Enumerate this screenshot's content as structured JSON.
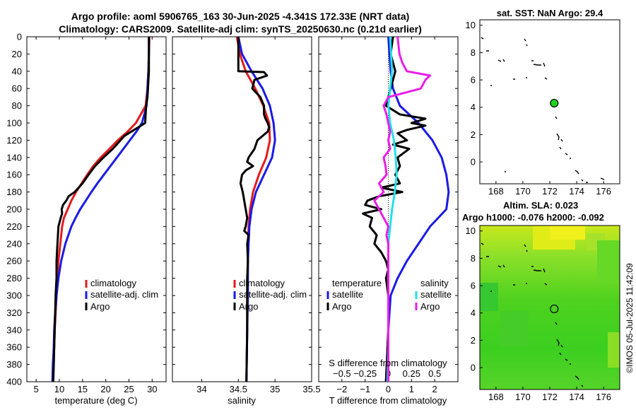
{
  "titles": {
    "line1": "Argo profile: aoml 5906765_163 30-Jun-2025 -4.341S 172.33E (NRT data)",
    "line2": "Climatology: CARS2009. Satellite-adj clim: synTS_20250630.nc (0.21d earlier)"
  },
  "colors": {
    "climatology": "#e41a1c",
    "satellite": "#1a1ae6",
    "argo": "#000000",
    "sal_satellite": "#22e0e8",
    "sal_argo": "#e81ee8"
  },
  "chart_data": [
    {
      "id": "temperature",
      "type": "line",
      "xlabel": "temperature (deg C)",
      "ylabel": "",
      "xlim": [
        3,
        33
      ],
      "ylim": [
        400,
        0
      ],
      "xticks": [
        5,
        10,
        15,
        20,
        25,
        30
      ],
      "yticks": [
        0,
        20,
        40,
        60,
        80,
        100,
        120,
        140,
        160,
        180,
        200,
        220,
        240,
        260,
        280,
        300,
        320,
        340,
        360,
        380,
        400
      ],
      "legend": [
        "climatology",
        "satellite-adj. clim",
        "Argo"
      ],
      "series": [
        {
          "name": "climatology",
          "depth": [
            0,
            20,
            40,
            60,
            80,
            100,
            110,
            120,
            130,
            140,
            150,
            160,
            170,
            180,
            190,
            200,
            210,
            220,
            240,
            260,
            280,
            300,
            320,
            340,
            360,
            380,
            400
          ],
          "values": [
            29.4,
            29.3,
            29.2,
            29.0,
            28.6,
            26.5,
            24.7,
            22.6,
            20.8,
            18.9,
            17.3,
            16.0,
            14.8,
            13.6,
            12.6,
            11.8,
            11.0,
            10.6,
            10.2,
            9.8,
            9.6,
            9.4,
            9.2,
            9.0,
            8.9,
            8.7,
            8.6
          ]
        },
        {
          "name": "satellite-adj. clim",
          "depth": [
            0,
            20,
            40,
            60,
            80,
            100,
            110,
            120,
            130,
            140,
            150,
            160,
            170,
            180,
            190,
            200,
            210,
            220,
            240,
            260,
            280,
            300,
            320,
            340,
            360,
            380,
            400
          ],
          "values": [
            29.3,
            29.3,
            29.2,
            29.0,
            28.8,
            27.8,
            26.6,
            25.2,
            23.8,
            22.4,
            21.0,
            19.6,
            18.2,
            16.9,
            15.7,
            14.5,
            13.5,
            12.6,
            11.3,
            10.4,
            9.8,
            9.4,
            9.1,
            8.9,
            8.8,
            8.6,
            8.5
          ]
        },
        {
          "name": "Argo",
          "depth": [
            0,
            20,
            40,
            60,
            70,
            80,
            90,
            100,
            105,
            110,
            115,
            120,
            130,
            140,
            150,
            160,
            170,
            180,
            185,
            190,
            195,
            200,
            205,
            210,
            220,
            230,
            240,
            260,
            280,
            300,
            320,
            340,
            360,
            380,
            400
          ],
          "values": [
            29.3,
            29.3,
            29.3,
            29.1,
            29.0,
            28.7,
            28.6,
            28.5,
            27.0,
            25.5,
            24.0,
            23.2,
            21.5,
            19.5,
            17.7,
            16.3,
            15.0,
            13.3,
            12.0,
            11.5,
            10.8,
            10.5,
            10.6,
            10.3,
            9.8,
            9.7,
            9.6,
            9.4,
            9.4,
            9.2,
            9.1,
            9.0,
            8.9,
            8.8,
            8.7
          ]
        }
      ]
    },
    {
      "id": "salinity",
      "type": "line",
      "xlabel": "salinity",
      "ylabel": "",
      "xlim": [
        33.6,
        35.5
      ],
      "ylim": [
        400,
        0
      ],
      "xticks": [
        34,
        34.5,
        35,
        35.5
      ],
      "yticks": [
        0,
        20,
        40,
        60,
        80,
        100,
        120,
        140,
        160,
        180,
        200,
        220,
        240,
        260,
        280,
        300,
        320,
        340,
        360,
        380,
        400
      ],
      "legend": [
        "climatology",
        "satellite-adj. clim",
        "Argo"
      ],
      "series": [
        {
          "name": "climatology",
          "depth": [
            0,
            20,
            40,
            60,
            80,
            100,
            120,
            140,
            160,
            180,
            200,
            220,
            240,
            260,
            300,
            340,
            400
          ],
          "values": [
            34.48,
            34.52,
            34.6,
            34.73,
            34.84,
            34.92,
            34.93,
            34.88,
            34.78,
            34.7,
            34.66,
            34.64,
            34.63,
            34.63,
            34.62,
            34.62,
            34.61
          ]
        },
        {
          "name": "satellite-adj. clim",
          "depth": [
            0,
            20,
            40,
            60,
            80,
            100,
            120,
            140,
            160,
            180,
            200,
            220,
            240,
            260,
            300,
            340,
            400
          ],
          "values": [
            34.5,
            34.55,
            34.68,
            34.83,
            34.93,
            34.98,
            35.0,
            34.96,
            34.85,
            34.74,
            34.68,
            34.65,
            34.64,
            34.63,
            34.63,
            34.62,
            34.61
          ]
        },
        {
          "name": "Argo",
          "depth": [
            0,
            20,
            40,
            41,
            45,
            50,
            60,
            70,
            80,
            90,
            95,
            100,
            105,
            110,
            120,
            130,
            140,
            145,
            150,
            155,
            160,
            170,
            180,
            190,
            200,
            210,
            220,
            225,
            230,
            240,
            260,
            280,
            300,
            340,
            400
          ],
          "values": [
            34.5,
            34.5,
            34.5,
            34.85,
            34.89,
            34.72,
            34.69,
            34.8,
            34.85,
            34.85,
            34.87,
            34.9,
            34.92,
            34.9,
            34.76,
            34.72,
            34.64,
            34.62,
            34.7,
            34.6,
            34.55,
            34.53,
            34.56,
            34.58,
            34.6,
            34.62,
            34.6,
            34.58,
            34.64,
            34.62,
            34.63,
            34.62,
            34.62,
            34.62,
            34.61
          ]
        }
      ]
    },
    {
      "id": "difference",
      "type": "line",
      "xlabel": "T difference from climatology",
      "xlabel2": "S difference from climatology",
      "xlim": [
        -3,
        3
      ],
      "xlim2": [
        -0.75,
        0.75
      ],
      "ylim": [
        400,
        0
      ],
      "xticks": [
        -2,
        -1,
        0,
        1,
        2
      ],
      "xticks2": [
        -0.5,
        -0.25,
        0,
        0.25,
        0.5
      ],
      "legend_temperature_title": "temperature",
      "legend_salinity_title": "salinity",
      "legend": [
        "satellite",
        "Argo"
      ],
      "series": [
        {
          "name": "temperature satellite",
          "depth": [
            0,
            40,
            60,
            80,
            100,
            120,
            140,
            160,
            180,
            200,
            220,
            240,
            260,
            280,
            300,
            340,
            400
          ],
          "values": [
            0.0,
            0.1,
            0.2,
            0.5,
            1.3,
            1.9,
            2.3,
            2.5,
            2.6,
            2.5,
            1.8,
            1.3,
            0.8,
            0.4,
            0.1,
            0.0,
            -0.1
          ]
        },
        {
          "name": "temperature Argo",
          "depth": [
            0,
            20,
            40,
            60,
            80,
            90,
            95,
            100,
            103,
            108,
            112,
            120,
            125,
            130,
            140,
            150,
            160,
            170,
            175,
            180,
            185,
            190,
            195,
            200,
            205,
            210,
            220,
            230,
            240,
            250,
            260,
            270,
            280,
            300,
            340,
            400
          ],
          "values": [
            0.2,
            0.1,
            0.3,
            0.1,
            -0.1,
            0.5,
            1.6,
            1.0,
            1.6,
            0.8,
            0.4,
            0.8,
            0.2,
            0.9,
            0.4,
            0.5,
            0.3,
            0.5,
            -0.3,
            0.6,
            -0.4,
            -0.9,
            -1.0,
            -0.3,
            -1.1,
            -0.7,
            -0.8,
            -0.5,
            -0.6,
            -0.3,
            -0.1,
            0.0,
            -0.1,
            0.0,
            0.0,
            -0.1
          ]
        },
        {
          "name": "salinity satellite",
          "depth": [
            0,
            20,
            40,
            60,
            80,
            100,
            120,
            140,
            160,
            180,
            200,
            240,
            280,
            320,
            360,
            400
          ],
          "values": [
            0.02,
            0.03,
            0.04,
            0.02,
            0.0,
            0.02,
            0.06,
            0.08,
            0.09,
            0.07,
            0.04,
            0.0,
            0.0,
            0.0,
            0.0,
            -0.01
          ]
        },
        {
          "name": "salinity Argo",
          "depth": [
            0,
            20,
            30,
            40,
            45,
            50,
            60,
            70,
            80,
            90,
            100,
            110,
            120,
            130,
            140,
            150,
            160,
            170,
            180,
            190,
            200,
            210,
            220,
            230,
            240,
            260,
            280,
            300,
            340,
            400
          ],
          "values": [
            0.1,
            0.12,
            0.15,
            0.2,
            0.45,
            0.4,
            0.35,
            0.0,
            -0.05,
            -0.02,
            0.0,
            0.02,
            0.0,
            0.02,
            -0.05,
            -0.03,
            -0.02,
            -0.1,
            -0.05,
            -0.15,
            -0.1,
            -0.05,
            0.0,
            -0.02,
            0.0,
            0.0,
            0.0,
            0.0,
            0.0,
            0.0
          ]
        }
      ]
    },
    {
      "id": "sst_map",
      "type": "scatter",
      "title": "sat. SST: NaN Argo: 29.4",
      "xlim": [
        166.8,
        177.2
      ],
      "ylim": [
        -1.6,
        10.4
      ],
      "xticks": [
        168,
        170,
        172,
        174,
        176
      ],
      "yticks": [
        0,
        2,
        4,
        6,
        8,
        10
      ],
      "argo_lon": 172.33,
      "argo_lat": 4.3
    },
    {
      "id": "sla_map",
      "type": "heatmap",
      "title": "Altim. SLA: 0.023",
      "title2": "Argo h1000: -0.076 h2000: -0.092",
      "xlim": [
        166.8,
        177.2
      ],
      "ylim": [
        -1.6,
        10.4
      ],
      "xticks": [
        168,
        170,
        172,
        174,
        176
      ],
      "yticks": [
        0,
        2,
        4,
        6,
        8,
        10
      ],
      "argo_lon": 172.33,
      "argo_lat": 4.3
    }
  ],
  "credit": "©IMOS 05-Jul-2025 11:42:09"
}
